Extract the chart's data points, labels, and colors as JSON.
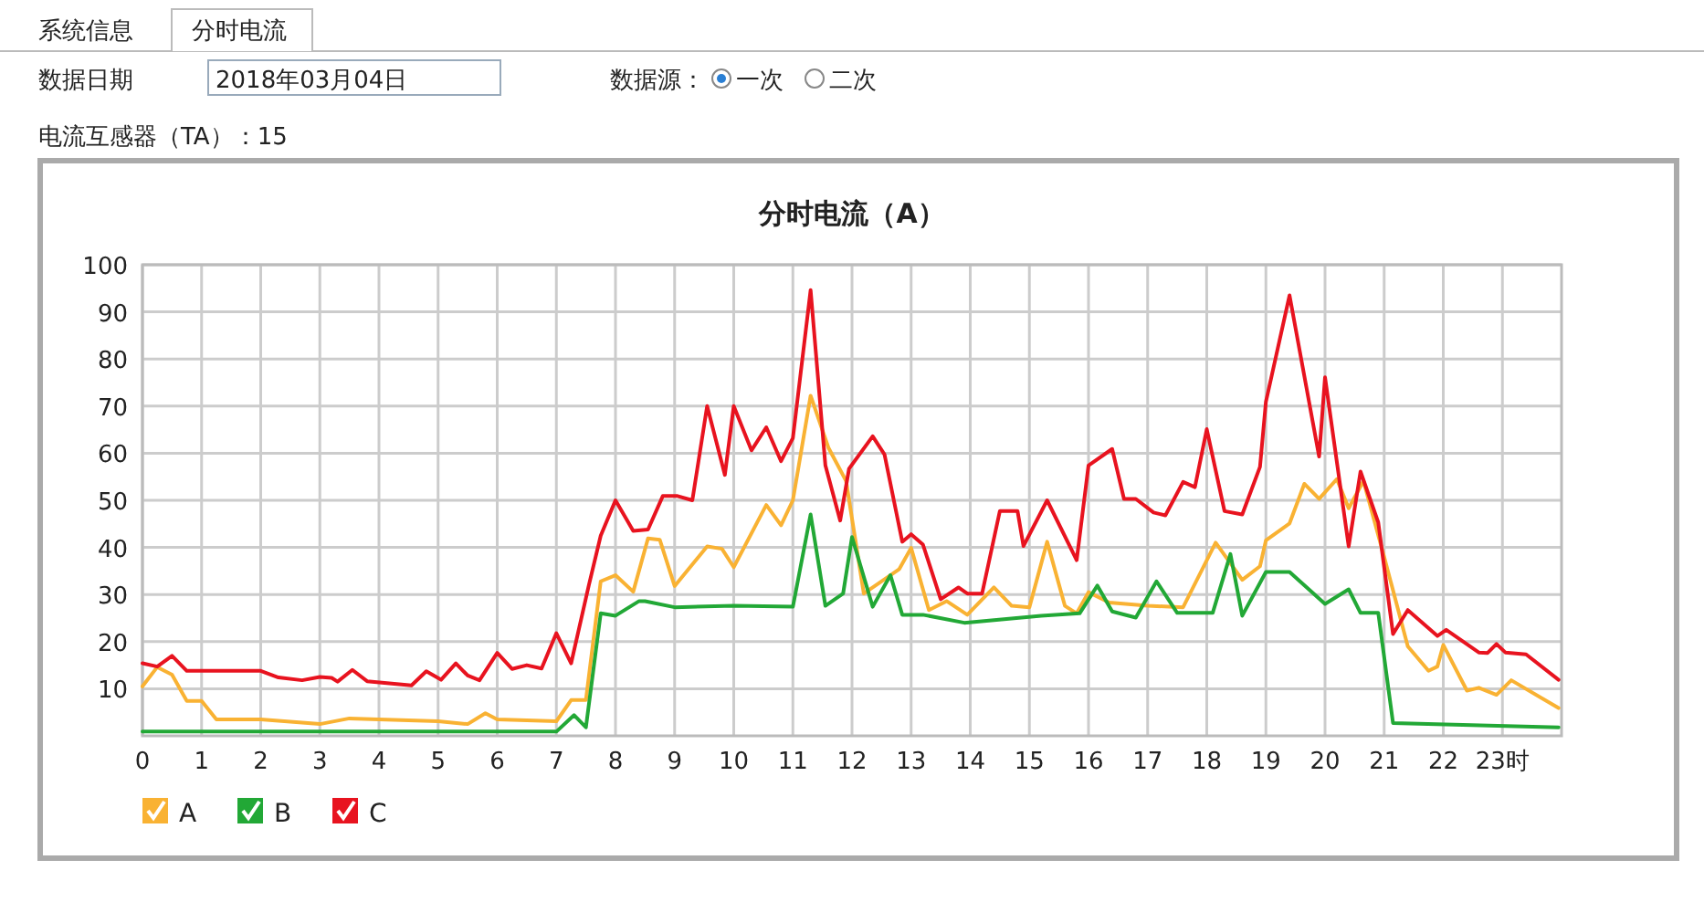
{
  "chart_data": {
    "type": "line",
    "title": "分时电流（A）",
    "annotations": [
      "系统信息",
      "分时电流",
      "数据日期",
      "2018年03月04日",
      "数据源：",
      "一次",
      "二次",
      "电流互感器（TA）：15"
    ],
    "xlim": [
      0,
      24
    ],
    "ylim": [
      0,
      100
    ],
    "xticks": [
      0,
      1,
      2,
      3,
      4,
      5,
      6,
      7,
      8,
      9,
      10,
      11,
      12,
      13,
      14,
      15,
      16,
      17,
      18,
      19,
      20,
      21,
      22,
      {
        "value": 23,
        "label": "23时"
      }
    ],
    "yticks": [
      10,
      20,
      30,
      40,
      50,
      60,
      70,
      80,
      90,
      100
    ],
    "grid": true,
    "legend": "bottom left",
    "series": [
      {
        "name": "A",
        "color": "#f9b233",
        "x": [
          0,
          0.25,
          0.5,
          0.75,
          1,
          1.25,
          2,
          3,
          3.5,
          5,
          5.5,
          5.8,
          6,
          7,
          7.25,
          7.5,
          7.75,
          8,
          8.3,
          8.55,
          8.75,
          9,
          9.55,
          9.8,
          10,
          10.55,
          10.8,
          11,
          11.3,
          11.6,
          11.9,
          12.2,
          12.8,
          13,
          13.3,
          13.6,
          13.95,
          14.4,
          14.7,
          15,
          15.3,
          15.6,
          15.8,
          16,
          16.35,
          17,
          17.6,
          18.15,
          18.6,
          18.9,
          19,
          19.4,
          19.65,
          19.9,
          20.2,
          20.4,
          20.65,
          21,
          21.4,
          21.75,
          21.9,
          22,
          22.4,
          22.6,
          22.9,
          23.15,
          23.95
        ],
        "values": [
          10.5,
          14.6,
          13,
          7.4,
          7.4,
          3.5,
          3.5,
          2.5,
          3.7,
          3.1,
          2.5,
          4.8,
          3.5,
          3.1,
          7.6,
          7.6,
          32.8,
          34.1,
          30.6,
          41.9,
          41.6,
          31.8,
          40.2,
          39.7,
          35.8,
          49,
          44.7,
          50,
          72.2,
          61.2,
          54.1,
          30.2,
          35.4,
          39.9,
          26.7,
          28.6,
          25.7,
          31.5,
          27.6,
          27.3,
          41.2,
          27.6,
          26,
          30.5,
          28.3,
          27.6,
          27.3,
          41,
          33.1,
          36,
          41.5,
          45.1,
          53.5,
          50.3,
          54.5,
          48.3,
          54.1,
          38,
          19,
          13.8,
          14.7,
          19.3,
          9.6,
          10.2,
          8.7,
          11.8,
          5.9
        ]
      },
      {
        "name": "B",
        "color": "#22a836",
        "x": [
          0,
          7,
          7.3,
          7.5,
          7.75,
          8,
          8.4,
          8.5,
          9,
          10,
          11,
          11.3,
          11.55,
          11.85,
          12,
          12.35,
          12.65,
          12.85,
          13.2,
          13.9,
          15.2,
          15.85,
          16.15,
          16.4,
          16.8,
          17.15,
          17.5,
          18.1,
          18.4,
          18.6,
          19,
          19.4,
          20,
          20.4,
          20.6,
          20.9,
          21.15,
          23.95
        ],
        "values": [
          0.9,
          0.9,
          4.4,
          1.8,
          26,
          25.5,
          28.6,
          28.6,
          27.3,
          27.6,
          27.4,
          47,
          27.6,
          30.2,
          42.2,
          27.4,
          34.1,
          25.7,
          25.7,
          24,
          25.5,
          26,
          31.9,
          26.4,
          25.1,
          32.8,
          26.1,
          26.1,
          38.6,
          25.5,
          34.8,
          34.8,
          28,
          31.1,
          26.1,
          26.1,
          2.7,
          1.8
        ]
      },
      {
        "name": "C",
        "color": "#e8131f",
        "x": [
          0,
          0.25,
          0.5,
          0.75,
          1.9,
          2,
          2.3,
          2.7,
          3,
          3.2,
          3.3,
          3.55,
          3.8,
          4.55,
          4.8,
          5.05,
          5.3,
          5.5,
          5.7,
          6,
          6.25,
          6.5,
          6.75,
          7,
          7.25,
          7.55,
          7.75,
          8,
          8.3,
          8.55,
          8.8,
          9.05,
          9.3,
          9.55,
          9.85,
          10,
          10.3,
          10.55,
          10.8,
          11,
          11.3,
          11.55,
          11.8,
          11.95,
          12.35,
          12.55,
          12.85,
          13,
          13.2,
          13.5,
          13.8,
          13.95,
          14.2,
          14.5,
          14.8,
          14.9,
          15.3,
          15.8,
          16,
          16.4,
          16.6,
          16.8,
          17.1,
          17.3,
          17.6,
          17.8,
          18,
          18.3,
          18.6,
          18.9,
          19,
          19.4,
          19.9,
          20,
          20.4,
          20.6,
          20.9,
          21.15,
          21.4,
          21.9,
          22.05,
          22.6,
          22.75,
          22.9,
          23.05,
          23.4,
          23.95
        ],
        "values": [
          15.4,
          14.7,
          17,
          13.8,
          13.8,
          13.8,
          12.4,
          11.8,
          12.5,
          12.3,
          11.5,
          14,
          11.6,
          10.7,
          13.7,
          11.9,
          15.4,
          12.8,
          11.8,
          17.6,
          14.2,
          15,
          14.3,
          21.8,
          15.4,
          32,
          42.5,
          50,
          43.5,
          43.8,
          50.9,
          50.9,
          50,
          70,
          55.4,
          70,
          60.6,
          65.5,
          58.3,
          63.2,
          94.6,
          57.4,
          45.7,
          56.7,
          63.6,
          59.7,
          41.2,
          42.8,
          40.6,
          29,
          31.5,
          30.2,
          30.2,
          47.7,
          47.7,
          40.3,
          50,
          37.3,
          57.4,
          60.9,
          50.3,
          50.3,
          47.4,
          46.8,
          53.9,
          52.8,
          65.1,
          47.7,
          47,
          57.1,
          70.9,
          93.5,
          59.3,
          76.1,
          40.2,
          56.1,
          45.3,
          21.6,
          26.7,
          21.2,
          22.5,
          17.7,
          17.6,
          19.5,
          17.7,
          17.3,
          11.9
        ]
      }
    ]
  }
}
